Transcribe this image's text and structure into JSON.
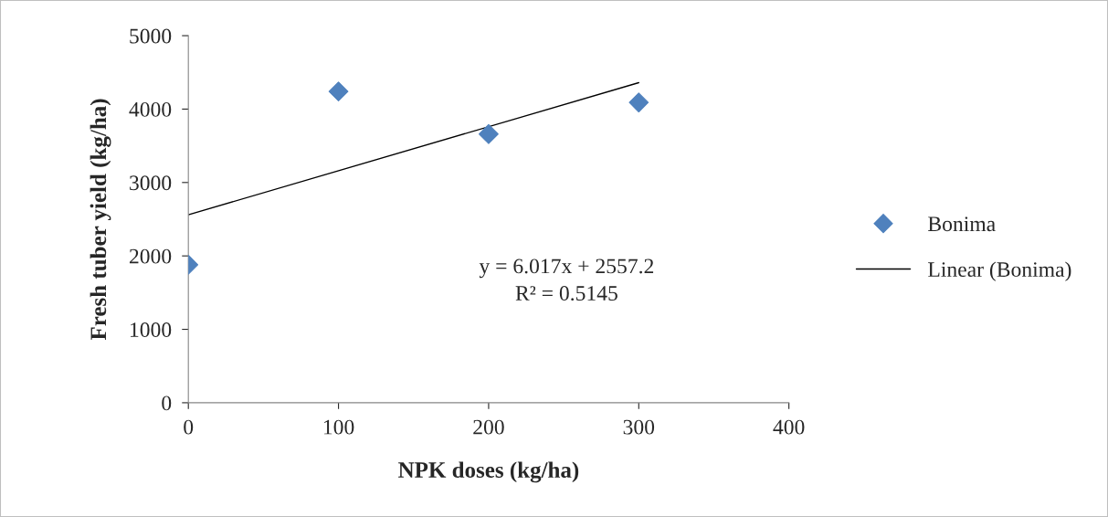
{
  "chart_data": {
    "type": "scatter",
    "xlabel": "NPK doses (kg/ha)",
    "ylabel": "Fresh tuber yield (kg/ha)",
    "series": [
      {
        "name": "Bonima",
        "color": "#4f81bd",
        "marker": "diamond",
        "x": [
          0,
          100,
          200,
          300
        ],
        "values": [
          1880,
          4240,
          3660,
          4090
        ]
      },
      {
        "name": "Linear (Bonima)",
        "type": "line",
        "color": "#000000",
        "x": [
          0,
          300
        ],
        "values": [
          2560,
          4360
        ]
      }
    ],
    "annotations": [
      "y = 6.017x + 2557.2\nR² = 0.5145"
    ],
    "xlim": [
      0,
      400
    ],
    "xticks": [
      0,
      100,
      200,
      300,
      400
    ],
    "ylim": [
      0,
      5000
    ],
    "yticks": [
      0,
      1000,
      2000,
      3000,
      4000,
      5000
    ],
    "grid": false,
    "legend": "right"
  }
}
